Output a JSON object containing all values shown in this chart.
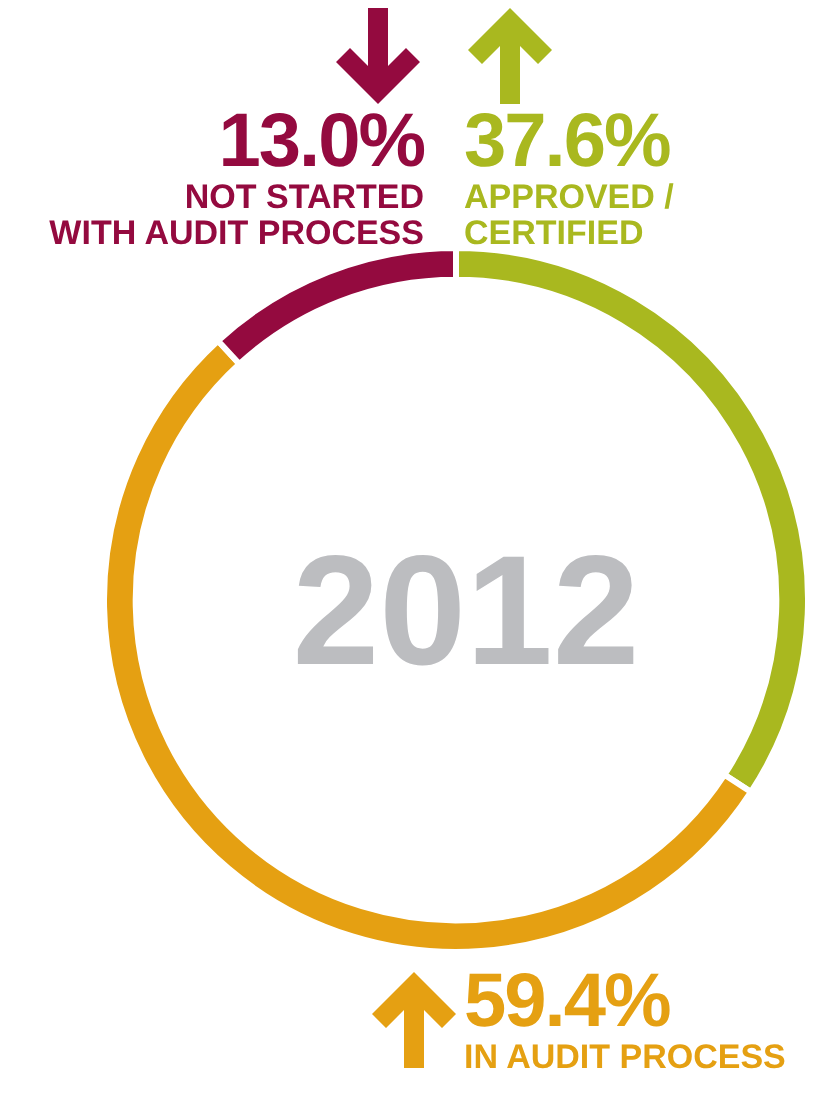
{
  "chart_data": {
    "type": "donut",
    "title": "2012",
    "categories": [
      "APPROVED /\nCERTIFIED",
      "IN AUDIT PROCESS",
      "NOT STARTED\nWITH AUDIT PROCESS"
    ],
    "values": [
      37.6,
      59.4,
      13.0
    ],
    "colors": [
      "#a9b81f",
      "#e5a012",
      "#940a3f"
    ],
    "value_labels": [
      "37.6%",
      "59.4%",
      "13.0%"
    ],
    "legend": false
  }
}
